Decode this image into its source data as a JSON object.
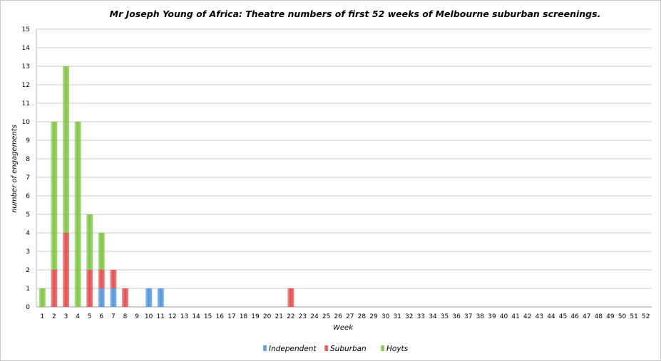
{
  "chart_data": {
    "type": "bar",
    "stacked": true,
    "title": "Mr Joseph Young of Africa: Theatre numbers of first 52 weeks of Melbourne suburban screenings.",
    "xlabel": "Week",
    "ylabel": "number of engagements",
    "ylim": [
      0,
      15
    ],
    "y_ticks": [
      "0",
      "1",
      "2",
      "3",
      "4",
      "5",
      "6",
      "7",
      "8",
      "9",
      "10",
      "11",
      "12",
      "13",
      "14",
      "15"
    ],
    "grid": true,
    "legend_position": "bottom",
    "categories": [
      "1",
      "2",
      "3",
      "4",
      "5",
      "6",
      "7",
      "8",
      "9",
      "10",
      "11",
      "12",
      "13",
      "14",
      "15",
      "16",
      "17",
      "18",
      "19",
      "20",
      "21",
      "22",
      "23",
      "24",
      "25",
      "26",
      "27",
      "28",
      "29",
      "30",
      "31",
      "32",
      "33",
      "34",
      "35",
      "36",
      "37",
      "38",
      "39",
      "40",
      "41",
      "42",
      "43",
      "44",
      "45",
      "46",
      "47",
      "48",
      "49",
      "50",
      "51",
      "52"
    ],
    "series": [
      {
        "name": "Independent",
        "color": "#4a90d9",
        "values": [
          0,
          0,
          0,
          0,
          0,
          1,
          1,
          0,
          0,
          1,
          1,
          0,
          0,
          0,
          0,
          0,
          0,
          0,
          0,
          0,
          0,
          0,
          0,
          0,
          0,
          0,
          0,
          0,
          0,
          0,
          0,
          0,
          0,
          0,
          0,
          0,
          0,
          0,
          0,
          0,
          0,
          0,
          0,
          0,
          0,
          0,
          0,
          0,
          0,
          0,
          0,
          0
        ]
      },
      {
        "name": "Suburban",
        "color": "#e0474a",
        "values": [
          0,
          2,
          4,
          0,
          2,
          1,
          1,
          1,
          0,
          0,
          0,
          0,
          0,
          0,
          0,
          0,
          0,
          0,
          0,
          0,
          0,
          1,
          0,
          0,
          0,
          0,
          0,
          0,
          0,
          0,
          0,
          0,
          0,
          0,
          0,
          0,
          0,
          0,
          0,
          0,
          0,
          0,
          0,
          0,
          0,
          0,
          0,
          0,
          0,
          0,
          0,
          0
        ]
      },
      {
        "name": "Hoyts",
        "color": "#7cc23c",
        "values": [
          1,
          8,
          9,
          10,
          3,
          2,
          0,
          0,
          0,
          0,
          0,
          0,
          0,
          0,
          0,
          0,
          0,
          0,
          0,
          0,
          0,
          0,
          0,
          0,
          0,
          0,
          0,
          0,
          0,
          0,
          0,
          0,
          0,
          0,
          0,
          0,
          0,
          0,
          0,
          0,
          0,
          0,
          0,
          0,
          0,
          0,
          0,
          0,
          0,
          0,
          0,
          0
        ]
      }
    ]
  }
}
